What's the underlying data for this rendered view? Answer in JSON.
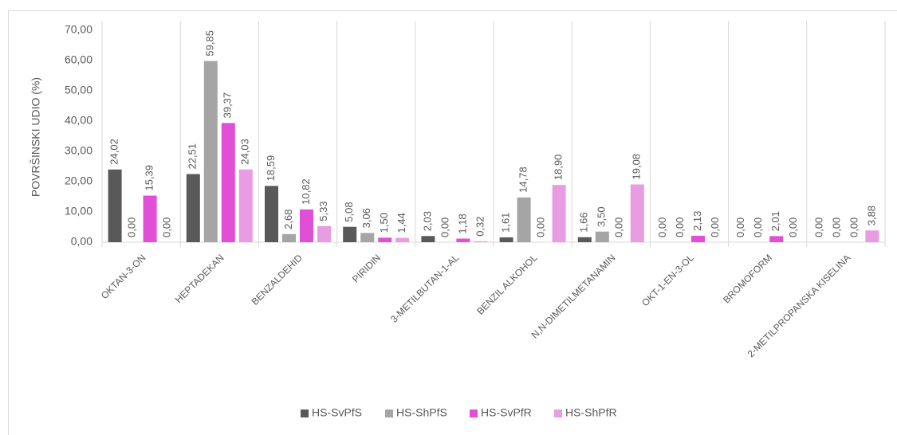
{
  "chart_data": {
    "type": "bar",
    "y_label": "POVRŠINSKI UDIO (%)",
    "categories": [
      "OKTAN-3-ON",
      "HEPTADEKAN",
      "BENZALDEHID",
      "PIRIDIN",
      "3-METILBUTAN-1-AL",
      "BENZIL ALKOHOL",
      "N,N-DIMETILMETANAMIN",
      "OKT-1-EN-3-OL",
      "BROMOFORM",
      "2-METILPROPANSKA KISELINA"
    ],
    "series": [
      {
        "name": "HS-SvPfS",
        "color": "#595959",
        "values": [
          24.02,
          22.51,
          18.59,
          5.08,
          2.03,
          1.61,
          1.66,
          0,
          0,
          0
        ],
        "value_labels": [
          "24,02",
          "22,51",
          "18,59",
          "5,08",
          "2,03",
          "1,61",
          "1,66",
          "0,00",
          "0,00",
          "0,00"
        ]
      },
      {
        "name": "HS-ShPfS",
        "color": "#a5a5a5",
        "values": [
          0,
          59.85,
          2.68,
          3.06,
          0,
          14.78,
          3.5,
          0,
          0,
          0
        ],
        "value_labels": [
          "0,00",
          "59,85",
          "2,68",
          "3,06",
          "0,00",
          "14,78",
          "3,50",
          "0,00",
          "0,00",
          "0,00"
        ]
      },
      {
        "name": "HS-SvPfR",
        "color": "#e04fd5",
        "values": [
          15.39,
          39.37,
          10.82,
          1.5,
          1.18,
          0,
          0,
          2.13,
          2.01,
          0
        ],
        "value_labels": [
          "15,39",
          "39,37",
          "10,82",
          "1,50",
          "1,18",
          "0,00",
          "0,00",
          "2,13",
          "2,01",
          "0,00"
        ]
      },
      {
        "name": "HS-ShPfR",
        "color": "#e89ce2",
        "values": [
          0,
          24.03,
          5.33,
          1.44,
          0.32,
          18.9,
          19.08,
          0,
          0,
          3.88
        ],
        "value_labels": [
          "0,00",
          "24,03",
          "5,33",
          "1,44",
          "0,32",
          "18,90",
          "19,08",
          "0,00",
          "0,00",
          "3,88"
        ]
      }
    ],
    "ylim": [
      0,
      70
    ],
    "yticks": [
      {
        "value": 0,
        "label": "0,00"
      },
      {
        "value": 10,
        "label": "10,00"
      },
      {
        "value": 20,
        "label": "20,00"
      },
      {
        "value": 30,
        "label": "30,00"
      },
      {
        "value": 40,
        "label": "40,00"
      },
      {
        "value": 50,
        "label": "50,00"
      },
      {
        "value": 60,
        "label": "60,00"
      },
      {
        "value": 70,
        "label": "70,00"
      }
    ],
    "legend": "bottom"
  }
}
